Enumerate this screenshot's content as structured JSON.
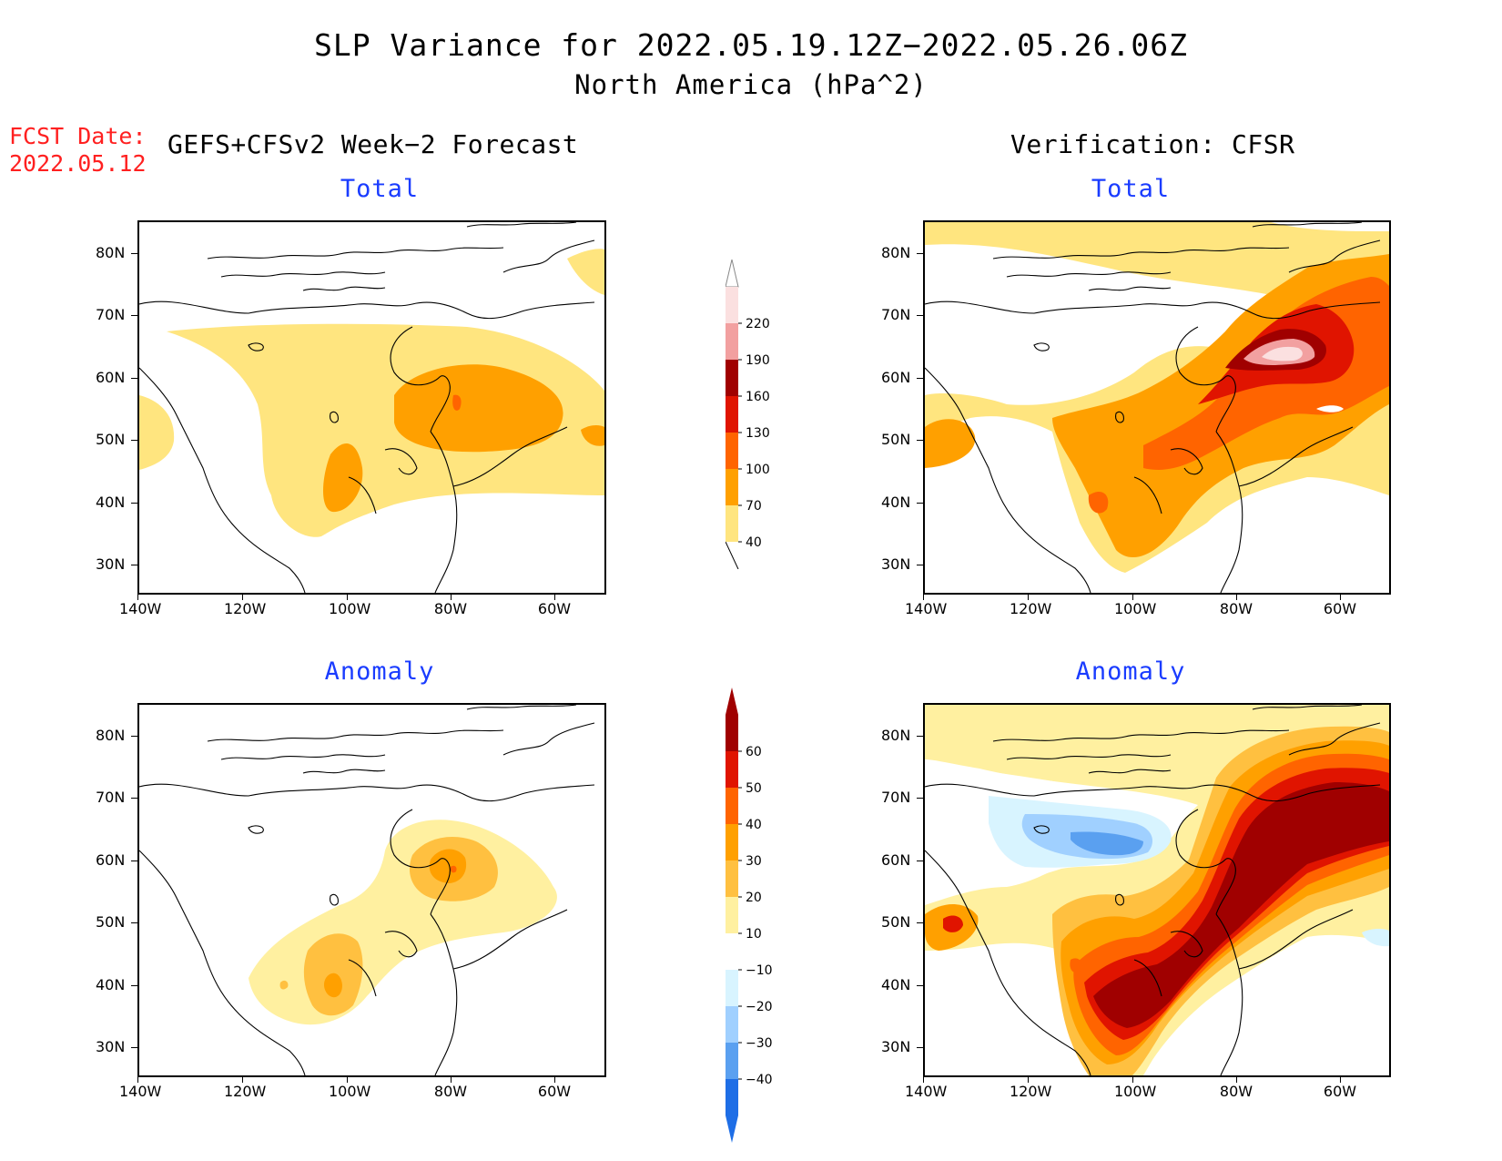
{
  "title": {
    "line1": "SLP Variance for 2022.05.19.12Z−2022.05.26.06Z",
    "line2": "North America (hPa^2)"
  },
  "fcst_date": {
    "label": "FCST Date:",
    "value": "2022.05.12"
  },
  "left_header": "GEFS+CFSv2 Week−2 Forecast",
  "right_header": "Verification: CFSR",
  "panels": {
    "top_left_title": "Total",
    "top_right_title": "Total",
    "bottom_left_title": "Anomaly",
    "bottom_right_title": "Anomaly"
  },
  "axes": {
    "lat_labels": [
      "80N",
      "70N",
      "60N",
      "50N",
      "40N",
      "30N"
    ],
    "lon_labels": [
      "140W",
      "120W",
      "100W",
      "80W",
      "60W"
    ]
  },
  "colorbar_total": {
    "labels": [
      "220",
      "190",
      "160",
      "130",
      "100",
      "70",
      "40"
    ],
    "colors": [
      "#fbe0e0",
      "#f2a0a0",
      "#a00000",
      "#e01400",
      "#ff6400",
      "#ffa000",
      "#ffe57f"
    ]
  },
  "colorbar_anomaly": {
    "labels": [
      "60",
      "50",
      "40",
      "30",
      "20",
      "10",
      "−10",
      "−20",
      "−30",
      "−40"
    ],
    "colors": [
      "#a00000",
      "#e01400",
      "#ff6400",
      "#ffa000",
      "#ffc040",
      "#fff0a0",
      "#ffffff",
      "#d8f4ff",
      "#a0d0ff",
      "#5aa0f0",
      "#1e6ee6"
    ]
  }
}
